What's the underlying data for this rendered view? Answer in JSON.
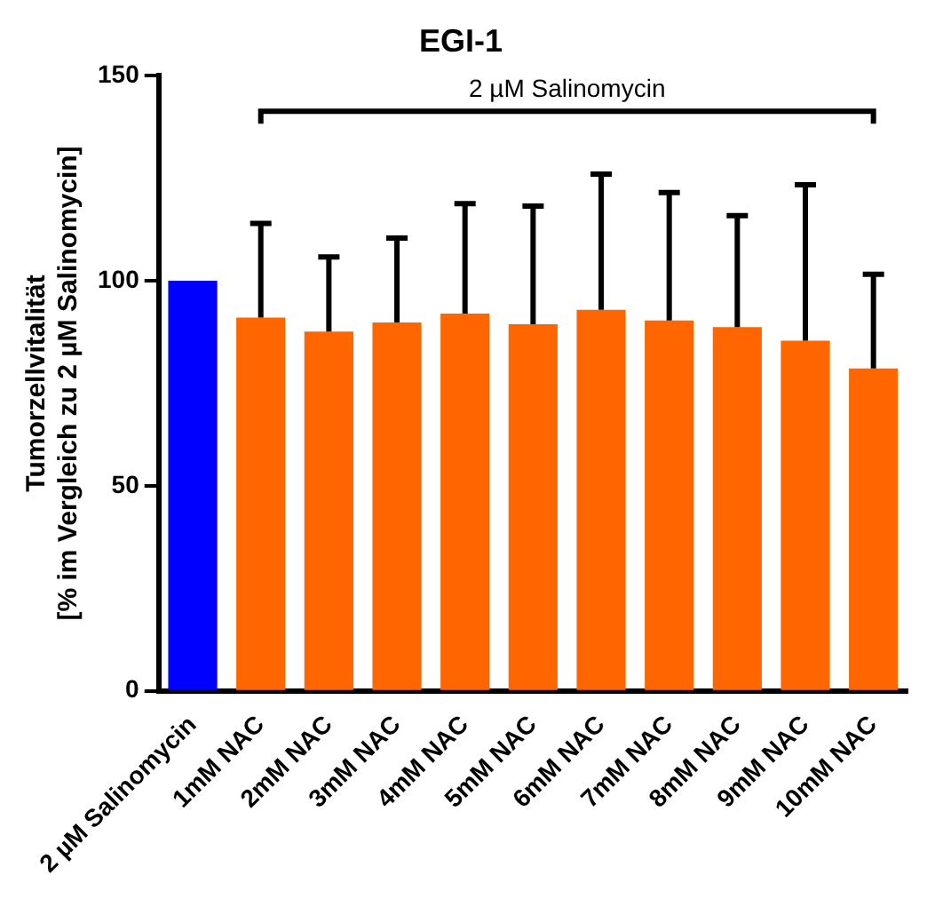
{
  "chart_data": {
    "type": "bar",
    "title": "EGI-1",
    "ylabel": "Tumorzellvitalität\n[% im Vergleich zu 2 µM Salinomycin]",
    "categories": [
      "2 µM Salinomycin",
      "1mM NAC",
      "2mM NAC",
      "3mM NAC",
      "4mM NAC",
      "5mM NAC",
      "6mM NAC",
      "7mM NAC",
      "8mM NAC",
      "9mM NAC",
      "10mM NAC"
    ],
    "values": [
      100,
      91,
      87.6,
      89.8,
      92,
      89.4,
      92.9,
      90.3,
      88.7,
      85.4,
      78.6
    ],
    "colors": [
      "#0000ff",
      "#ff6600",
      "#ff6600",
      "#ff6600",
      "#ff6600",
      "#ff6600",
      "#ff6600",
      "#ff6600",
      "#ff6600",
      "#ff6600",
      "#ff6600"
    ],
    "errors": [
      null,
      [
        91,
        114
      ],
      [
        87.6,
        105.8
      ],
      [
        89.8,
        110.4
      ],
      [
        92,
        118.8
      ],
      [
        89.4,
        118.2
      ],
      [
        92.9,
        126
      ],
      [
        90.3,
        121.5
      ],
      [
        88.7,
        115.9
      ],
      [
        85.4,
        123.4
      ],
      [
        78.6,
        101.6
      ]
    ],
    "annotations": [
      "2 µM Salinomycin"
    ],
    "ylim": [
      0,
      150
    ],
    "yticks": [
      0,
      50,
      100,
      150
    ],
    "grid": false,
    "legend": false
  }
}
